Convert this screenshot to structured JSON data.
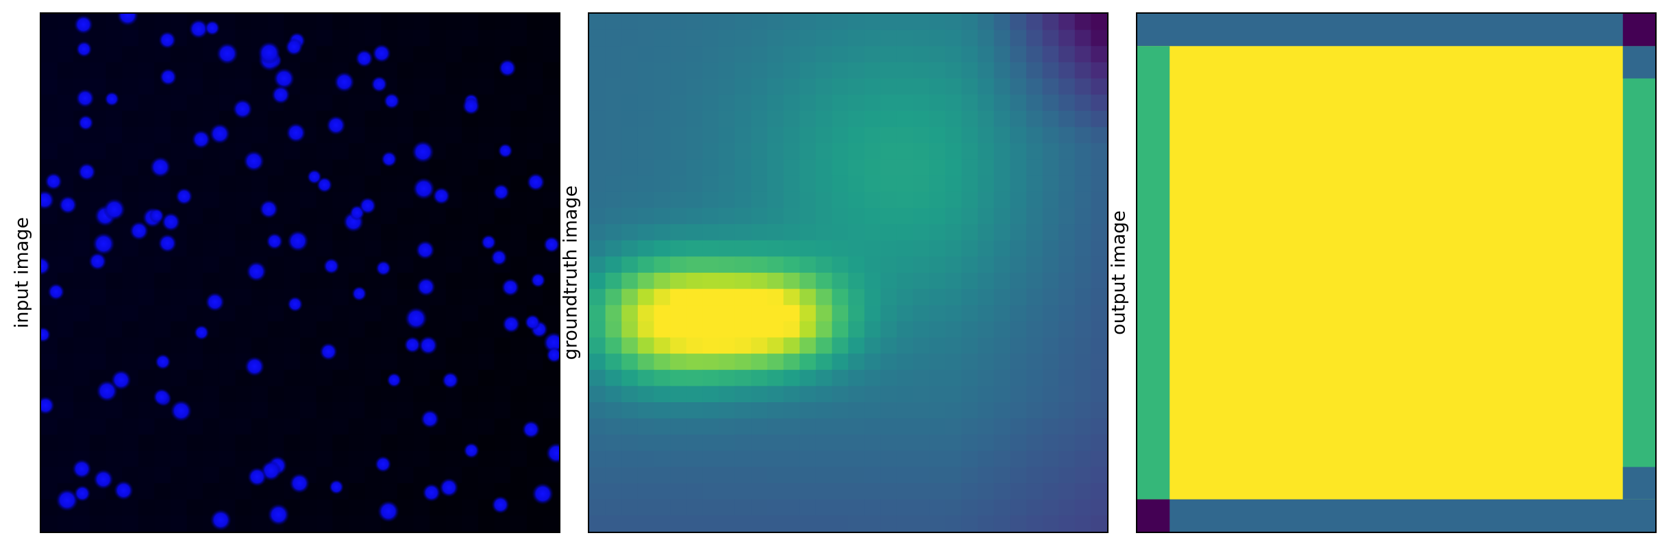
{
  "panels": [
    {
      "ylabel": "input image"
    },
    {
      "ylabel": "groundtruth image"
    },
    {
      "ylabel": "output image"
    }
  ],
  "chart_data": [
    {
      "type": "heatmap",
      "ylabel": "input image",
      "colormap": "blue-channel",
      "grid_size": [
        32,
        32
      ],
      "background_color": "#00001a",
      "blob_color": "#1010ff",
      "blob_count": 120
    },
    {
      "type": "heatmap",
      "ylabel": "groundtruth image",
      "colormap": "viridis",
      "grid_size": [
        32,
        32
      ],
      "peak_region": "center-left",
      "low_region": "top-right",
      "colors": {
        "low": "#440154",
        "mid": "#21918c",
        "high": "#fde725"
      }
    },
    {
      "type": "heatmap",
      "ylabel": "output image",
      "colormap": "viridis",
      "grid_size": [
        16,
        16
      ],
      "regions": {
        "interior": "#fde725",
        "top_border": "#31688e",
        "bottom_border": "#31688e",
        "left_border": "#35b779",
        "right_border": "#35b779",
        "top_right_corner": "#440154",
        "bottom_left_corner": "#440154",
        "right_top_cell": "#31688e",
        "right_bottom_cells": "#31688e"
      }
    }
  ]
}
